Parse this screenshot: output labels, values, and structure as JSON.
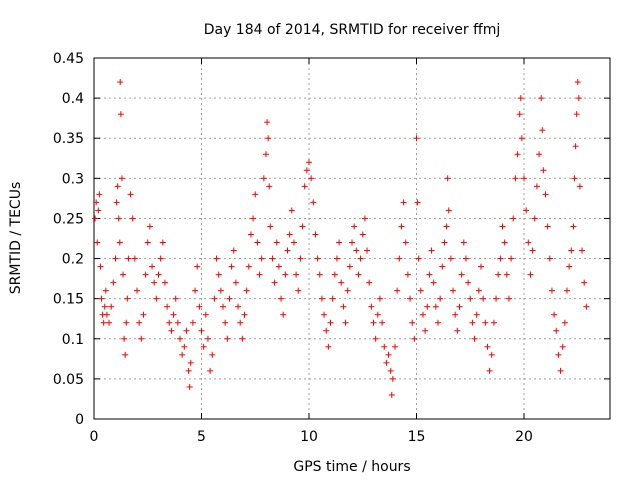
{
  "chart_data": {
    "type": "scatter",
    "title": "Day 184 of 2014, SRMTID for receiver ffmj",
    "xlabel": "GPS time / hours",
    "ylabel": "SRMTID / TECUs",
    "xlim": [
      0,
      24
    ],
    "ylim": [
      0,
      0.45
    ],
    "xticks": [
      0,
      5,
      10,
      15,
      20
    ],
    "xtick_labels": [
      "0",
      "5",
      "10",
      "15",
      "20"
    ],
    "yticks": [
      0,
      0.05,
      0.1,
      0.15,
      0.2,
      0.25,
      0.3,
      0.35,
      0.4,
      0.45
    ],
    "ytick_labels": [
      "0",
      "0.05",
      "0.1",
      "0.15",
      "0.2",
      "0.25",
      "0.3",
      "0.35",
      "0.4",
      "0.45"
    ],
    "grid": true,
    "marker": "+",
    "color": "#ff0000",
    "series": [
      {
        "name": "SRMTID",
        "points": [
          [
            0.05,
            0.25
          ],
          [
            0.1,
            0.27
          ],
          [
            0.15,
            0.22
          ],
          [
            0.2,
            0.26
          ],
          [
            0.25,
            0.28
          ],
          [
            0.3,
            0.19
          ],
          [
            0.35,
            0.15
          ],
          [
            0.4,
            0.13
          ],
          [
            0.45,
            0.12
          ],
          [
            0.5,
            0.14
          ],
          [
            0.55,
            0.16
          ],
          [
            0.6,
            0.13
          ],
          [
            0.7,
            0.12
          ],
          [
            0.8,
            0.14
          ],
          [
            0.9,
            0.17
          ],
          [
            1.0,
            0.2
          ],
          [
            1.05,
            0.27
          ],
          [
            1.1,
            0.29
          ],
          [
            1.15,
            0.25
          ],
          [
            1.2,
            0.22
          ],
          [
            1.22,
            0.42
          ],
          [
            1.25,
            0.38
          ],
          [
            1.3,
            0.3
          ],
          [
            1.35,
            0.18
          ],
          [
            1.4,
            0.1
          ],
          [
            1.45,
            0.08
          ],
          [
            1.5,
            0.12
          ],
          [
            1.55,
            0.15
          ],
          [
            1.6,
            0.2
          ],
          [
            1.7,
            0.28
          ],
          [
            1.8,
            0.25
          ],
          [
            1.9,
            0.2
          ],
          [
            2.0,
            0.16
          ],
          [
            2.1,
            0.12
          ],
          [
            2.2,
            0.1
          ],
          [
            2.3,
            0.13
          ],
          [
            2.4,
            0.18
          ],
          [
            2.5,
            0.22
          ],
          [
            2.6,
            0.24
          ],
          [
            2.7,
            0.19
          ],
          [
            2.8,
            0.17
          ],
          [
            2.9,
            0.15
          ],
          [
            3.0,
            0.18
          ],
          [
            3.1,
            0.2
          ],
          [
            3.2,
            0.22
          ],
          [
            3.3,
            0.17
          ],
          [
            3.4,
            0.14
          ],
          [
            3.5,
            0.12
          ],
          [
            3.6,
            0.11
          ],
          [
            3.7,
            0.13
          ],
          [
            3.8,
            0.15
          ],
          [
            3.9,
            0.12
          ],
          [
            4.0,
            0.1
          ],
          [
            4.1,
            0.08
          ],
          [
            4.2,
            0.09
          ],
          [
            4.3,
            0.11
          ],
          [
            4.4,
            0.06
          ],
          [
            4.45,
            0.04
          ],
          [
            4.5,
            0.07
          ],
          [
            4.6,
            0.12
          ],
          [
            4.7,
            0.16
          ],
          [
            4.8,
            0.19
          ],
          [
            4.9,
            0.14
          ],
          [
            5.0,
            0.11
          ],
          [
            5.1,
            0.09
          ],
          [
            5.2,
            0.13
          ],
          [
            5.3,
            0.1
          ],
          [
            5.4,
            0.06
          ],
          [
            5.5,
            0.08
          ],
          [
            5.6,
            0.15
          ],
          [
            5.7,
            0.2
          ],
          [
            5.8,
            0.18
          ],
          [
            5.9,
            0.16
          ],
          [
            6.0,
            0.14
          ],
          [
            6.1,
            0.12
          ],
          [
            6.2,
            0.1
          ],
          [
            6.3,
            0.15
          ],
          [
            6.4,
            0.19
          ],
          [
            6.5,
            0.21
          ],
          [
            6.6,
            0.17
          ],
          [
            6.7,
            0.14
          ],
          [
            6.8,
            0.12
          ],
          [
            6.9,
            0.1
          ],
          [
            7.0,
            0.13
          ],
          [
            7.1,
            0.16
          ],
          [
            7.2,
            0.19
          ],
          [
            7.3,
            0.23
          ],
          [
            7.4,
            0.25
          ],
          [
            7.5,
            0.28
          ],
          [
            7.6,
            0.22
          ],
          [
            7.7,
            0.18
          ],
          [
            7.8,
            0.2
          ],
          [
            7.9,
            0.3
          ],
          [
            8.0,
            0.33
          ],
          [
            8.05,
            0.37
          ],
          [
            8.1,
            0.35
          ],
          [
            8.15,
            0.29
          ],
          [
            8.2,
            0.24
          ],
          [
            8.3,
            0.2
          ],
          [
            8.4,
            0.17
          ],
          [
            8.5,
            0.22
          ],
          [
            8.6,
            0.19
          ],
          [
            8.7,
            0.15
          ],
          [
            8.8,
            0.13
          ],
          [
            8.9,
            0.18
          ],
          [
            9.0,
            0.21
          ],
          [
            9.1,
            0.23
          ],
          [
            9.2,
            0.26
          ],
          [
            9.3,
            0.22
          ],
          [
            9.4,
            0.18
          ],
          [
            9.5,
            0.16
          ],
          [
            9.6,
            0.2
          ],
          [
            9.7,
            0.24
          ],
          [
            9.8,
            0.29
          ],
          [
            9.9,
            0.31
          ],
          [
            10.0,
            0.32
          ],
          [
            10.1,
            0.3
          ],
          [
            10.2,
            0.27
          ],
          [
            10.3,
            0.23
          ],
          [
            10.4,
            0.2
          ],
          [
            10.5,
            0.18
          ],
          [
            10.6,
            0.15
          ],
          [
            10.7,
            0.13
          ],
          [
            10.8,
            0.11
          ],
          [
            10.9,
            0.09
          ],
          [
            11.0,
            0.12
          ],
          [
            11.1,
            0.15
          ],
          [
            11.2,
            0.18
          ],
          [
            11.3,
            0.2
          ],
          [
            11.4,
            0.22
          ],
          [
            11.5,
            0.17
          ],
          [
            11.6,
            0.14
          ],
          [
            11.7,
            0.12
          ],
          [
            11.8,
            0.16
          ],
          [
            11.9,
            0.19
          ],
          [
            12.0,
            0.22
          ],
          [
            12.1,
            0.24
          ],
          [
            12.2,
            0.21
          ],
          [
            12.3,
            0.18
          ],
          [
            12.4,
            0.2
          ],
          [
            12.5,
            0.23
          ],
          [
            12.6,
            0.25
          ],
          [
            12.7,
            0.21
          ],
          [
            12.8,
            0.17
          ],
          [
            12.9,
            0.14
          ],
          [
            13.0,
            0.12
          ],
          [
            13.1,
            0.1
          ],
          [
            13.2,
            0.13
          ],
          [
            13.3,
            0.15
          ],
          [
            13.4,
            0.12
          ],
          [
            13.5,
            0.09
          ],
          [
            13.6,
            0.07
          ],
          [
            13.7,
            0.08
          ],
          [
            13.8,
            0.06
          ],
          [
            13.85,
            0.03
          ],
          [
            13.9,
            0.05
          ],
          [
            14.0,
            0.09
          ],
          [
            14.1,
            0.16
          ],
          [
            14.2,
            0.2
          ],
          [
            14.3,
            0.24
          ],
          [
            14.4,
            0.27
          ],
          [
            14.5,
            0.22
          ],
          [
            14.6,
            0.18
          ],
          [
            14.7,
            0.15
          ],
          [
            14.8,
            0.12
          ],
          [
            14.9,
            0.1
          ],
          [
            15.0,
            0.35
          ],
          [
            15.05,
            0.27
          ],
          [
            15.1,
            0.2
          ],
          [
            15.2,
            0.16
          ],
          [
            15.3,
            0.13
          ],
          [
            15.4,
            0.11
          ],
          [
            15.5,
            0.14
          ],
          [
            15.6,
            0.18
          ],
          [
            15.7,
            0.21
          ],
          [
            15.8,
            0.17
          ],
          [
            15.9,
            0.14
          ],
          [
            16.0,
            0.12
          ],
          [
            16.1,
            0.15
          ],
          [
            16.2,
            0.19
          ],
          [
            16.3,
            0.22
          ],
          [
            16.4,
            0.24
          ],
          [
            16.45,
            0.3
          ],
          [
            16.5,
            0.26
          ],
          [
            16.6,
            0.2
          ],
          [
            16.7,
            0.16
          ],
          [
            16.8,
            0.13
          ],
          [
            16.9,
            0.11
          ],
          [
            17.0,
            0.14
          ],
          [
            17.1,
            0.18
          ],
          [
            17.2,
            0.22
          ],
          [
            17.3,
            0.2
          ],
          [
            17.4,
            0.17
          ],
          [
            17.5,
            0.15
          ],
          [
            17.6,
            0.12
          ],
          [
            17.7,
            0.1
          ],
          [
            17.8,
            0.13
          ],
          [
            17.9,
            0.16
          ],
          [
            18.0,
            0.19
          ],
          [
            18.1,
            0.15
          ],
          [
            18.2,
            0.12
          ],
          [
            18.3,
            0.09
          ],
          [
            18.4,
            0.06
          ],
          [
            18.5,
            0.08
          ],
          [
            18.6,
            0.12
          ],
          [
            18.7,
            0.15
          ],
          [
            18.8,
            0.18
          ],
          [
            18.9,
            0.2
          ],
          [
            19.0,
            0.24
          ],
          [
            19.1,
            0.22
          ],
          [
            19.2,
            0.18
          ],
          [
            19.3,
            0.15
          ],
          [
            19.4,
            0.2
          ],
          [
            19.5,
            0.25
          ],
          [
            19.6,
            0.3
          ],
          [
            19.7,
            0.33
          ],
          [
            19.8,
            0.38
          ],
          [
            19.85,
            0.4
          ],
          [
            19.9,
            0.35
          ],
          [
            20.0,
            0.3
          ],
          [
            20.1,
            0.26
          ],
          [
            20.2,
            0.22
          ],
          [
            20.3,
            0.18
          ],
          [
            20.4,
            0.21
          ],
          [
            20.5,
            0.25
          ],
          [
            20.6,
            0.29
          ],
          [
            20.7,
            0.33
          ],
          [
            20.8,
            0.4
          ],
          [
            20.85,
            0.36
          ],
          [
            20.9,
            0.31
          ],
          [
            21.0,
            0.28
          ],
          [
            21.1,
            0.24
          ],
          [
            21.2,
            0.2
          ],
          [
            21.3,
            0.16
          ],
          [
            21.4,
            0.13
          ],
          [
            21.5,
            0.11
          ],
          [
            21.6,
            0.08
          ],
          [
            21.7,
            0.06
          ],
          [
            21.8,
            0.09
          ],
          [
            21.9,
            0.12
          ],
          [
            22.0,
            0.16
          ],
          [
            22.1,
            0.19
          ],
          [
            22.2,
            0.21
          ],
          [
            22.3,
            0.24
          ],
          [
            22.35,
            0.3
          ],
          [
            22.4,
            0.34
          ],
          [
            22.45,
            0.38
          ],
          [
            22.5,
            0.42
          ],
          [
            22.55,
            0.4
          ],
          [
            22.6,
            0.29
          ],
          [
            22.7,
            0.21
          ],
          [
            22.8,
            0.17
          ],
          [
            22.9,
            0.14
          ]
        ]
      }
    ]
  }
}
